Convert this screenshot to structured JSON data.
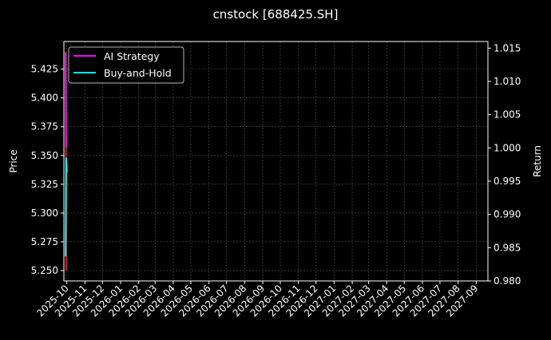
{
  "chart_data": {
    "type": "line",
    "title": "cnstock [688425.SH]",
    "ylabel_left": "Price",
    "ylabel_right": "Return",
    "xlim": [
      "2025-09-26",
      "2027-09-21"
    ],
    "ylim_left": [
      5.241,
      5.449
    ],
    "ylim_right": [
      0.98,
      1.016
    ],
    "grid": true,
    "legend_placement": "top-left",
    "x_ticks": [
      "2025-10",
      "2025-11",
      "2025-12",
      "2026-01",
      "2026-02",
      "2026-03",
      "2026-04",
      "2026-05",
      "2026-06",
      "2026-07",
      "2026-08",
      "2026-09",
      "2026-10",
      "2026-11",
      "2026-12",
      "2027-01",
      "2027-02",
      "2027-03",
      "2027-04",
      "2027-05",
      "2027-06",
      "2027-07",
      "2027-08",
      "2027-09"
    ],
    "y_ticks_left": [
      "5.250",
      "5.275",
      "5.300",
      "5.325",
      "5.350",
      "5.375",
      "5.400",
      "5.425"
    ],
    "y_ticks_right": [
      "0.980",
      "0.985",
      "0.990",
      "0.995",
      "1.000",
      "1.005",
      "1.010",
      "1.015"
    ],
    "series": [
      {
        "axis": "left",
        "color": "#e0102a",
        "x": [
          "2025-09-29",
          "2025-09-30"
        ],
        "values": [
          5.44,
          5.25
        ]
      },
      {
        "name": "AI Strategy",
        "axis": "right",
        "color": "#ff00ff",
        "x": [
          "2025-09-29",
          "2025-09-30"
        ],
        "values": [
          1.0143,
          1.0
        ]
      },
      {
        "name": "Buy-and-Hold",
        "axis": "right",
        "color": "#00ffff",
        "x": [
          "2025-09-29",
          "2025-09-30",
          "2025-10-01"
        ],
        "values": [
          0.9837,
          0.9985,
          0.9963
        ]
      }
    ]
  }
}
